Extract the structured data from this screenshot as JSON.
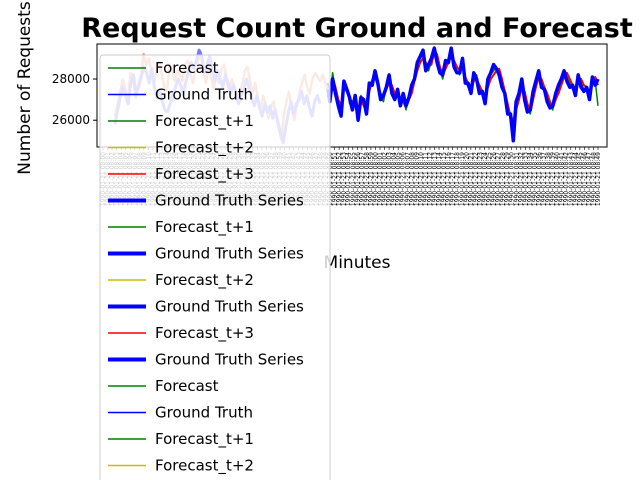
{
  "chart_data": {
    "type": "line",
    "title": "Request Count Ground and Forecast",
    "xlabel": "Minutes",
    "ylabel": "Number of Requests",
    "ylim": [
      24700,
      29700
    ],
    "yticks": [
      26000,
      28000
    ],
    "ytick_labels": [
      "26000",
      "28000"
    ],
    "x_tick_label_format": "1990-01-21 08:",
    "legend_location": "upper left",
    "grid": false,
    "legend": [
      {
        "name": "Forecast",
        "color": "#008000",
        "width": 1.5
      },
      {
        "name": "Ground Truth",
        "color": "#0000ff",
        "width": 1.5
      },
      {
        "name": "Forecast_t+1",
        "color": "#008000",
        "width": 1.5
      },
      {
        "name": "Forecast_t+2",
        "color": "#ccbb00",
        "width": 1.5
      },
      {
        "name": "Forecast_t+3",
        "color": "#ff0000",
        "width": 1.5
      },
      {
        "name": "Ground Truth Series",
        "color": "#0000ff",
        "width": 4
      },
      {
        "name": "Forecast_t+1",
        "color": "#008000",
        "width": 1.5
      },
      {
        "name": "Ground Truth Series",
        "color": "#0000ff",
        "width": 4
      },
      {
        "name": "Forecast_t+2",
        "color": "#ccbb00",
        "width": 1.5
      },
      {
        "name": "Ground Truth Series",
        "color": "#0000ff",
        "width": 4
      },
      {
        "name": "Forecast_t+3",
        "color": "#ff0000",
        "width": 1.5
      },
      {
        "name": "Ground Truth Series",
        "color": "#0000ff",
        "width": 4
      },
      {
        "name": "Forecast",
        "color": "#008000",
        "width": 1.5
      },
      {
        "name": "Ground Truth",
        "color": "#0000ff",
        "width": 1.5
      },
      {
        "name": "Forecast_t+1",
        "color": "#008000",
        "width": 1.5
      },
      {
        "name": "Forecast_t+2",
        "color": "#ccbb00",
        "width": 1.5
      }
    ],
    "series": [
      {
        "color": "#ff0000",
        "width": 2,
        "values": [
          27400,
          27200,
          28100,
          27600,
          27000,
          26700,
          27600,
          27400,
          27000,
          26900,
          26800,
          26300,
          27000,
          26700,
          26500,
          27400,
          27900,
          28100,
          27700,
          27300,
          27100,
          27500,
          27800,
          27700,
          27300,
          27200,
          27000,
          26900,
          26600,
          27000,
          27300,
          27900,
          28400,
          28800,
          29000,
          28800,
          28600,
          28700,
          29300,
          29200,
          28600,
          28200,
          28500,
          28800,
          29100,
          28900,
          28600,
          28400,
          28700,
          28100,
          27800,
          27600,
          27900,
          28000,
          27700,
          27400,
          27100,
          27600,
          28000,
          28200,
          28400,
          28500,
          28000,
          27400,
          26800,
          26200,
          26000,
          26500,
          27000,
          27600,
          27400,
          26800,
          26400,
          27000,
          27600,
          28100,
          28000,
          27600,
          27300,
          26900,
          26600,
          27000,
          27300,
          27700,
          28100,
          28300,
          28000,
          27700,
          27400,
          27800,
          28000,
          27700,
          27600,
          27300,
          27800,
          28100,
          27700
        ]
      },
      {
        "color": "#008000",
        "width": 1.5,
        "values": [
          27600,
          27000,
          28300,
          27500,
          26800,
          26500,
          27800,
          27600,
          26800,
          26700,
          27000,
          26100,
          27200,
          26900,
          26400,
          27600,
          28000,
          28300,
          27900,
          27100,
          26900,
          27700,
          28000,
          27500,
          27100,
          27400,
          26800,
          27100,
          26500,
          27200,
          27500,
          28100,
          28600,
          29000,
          29200,
          28600,
          28400,
          28900,
          29500,
          29000,
          28400,
          28000,
          28700,
          29000,
          29300,
          28700,
          28400,
          28200,
          28900,
          27900,
          27600,
          27500,
          28100,
          28200,
          27500,
          27200,
          26900,
          27800,
          28200,
          28400,
          28600,
          28300,
          27800,
          27200,
          26600,
          26000,
          25800,
          26700,
          27200,
          27800,
          27200,
          26600,
          26300,
          27200,
          27800,
          28300,
          27800,
          27400,
          27100,
          26700,
          26500,
          27200,
          27500,
          27900,
          28300,
          28100,
          27800,
          27500,
          27300,
          28000,
          27800,
          27500,
          27400,
          27200,
          28000,
          27900,
          26700
        ]
      },
      {
        "color": "#0000ff",
        "width": 3.5,
        "values": [
          27800,
          26900,
          28000,
          27300,
          26700,
          26200,
          27900,
          27500,
          27100,
          26500,
          27200,
          26000,
          27100,
          27000,
          26300,
          27800,
          27700,
          28400,
          27800,
          27000,
          27200,
          27600,
          28200,
          27300,
          27000,
          27500,
          26700,
          27300,
          26700,
          27100,
          27700,
          28000,
          28800,
          29100,
          29400,
          28400,
          28700,
          29000,
          29500,
          28800,
          28300,
          28200,
          28900,
          28800,
          29500,
          28600,
          28300,
          28300,
          29000,
          27800,
          27800,
          27300,
          28300,
          28000,
          27300,
          27400,
          26800,
          28000,
          28300,
          28700,
          28500,
          28200,
          27600,
          27300,
          26300,
          26300,
          25000,
          26900,
          27300,
          28000,
          27000,
          26400,
          26500,
          27400,
          27900,
          28400,
          27600,
          27500,
          26900,
          26600,
          26700,
          27300,
          27700,
          28000,
          28400,
          27900,
          27600,
          27700,
          27200,
          28200,
          27600,
          27400,
          27600,
          27000,
          28100,
          27700,
          28000
        ]
      },
      {
        "color": "#e9967a",
        "width": 2.5,
        "values": [
          26200,
          26800,
          27400,
          28000,
          27500,
          27100,
          28300,
          27900,
          27100,
          27800,
          28200,
          29200,
          28700,
          29000,
          28400,
          27800,
          28400,
          28800,
          28200,
          27600,
          27400,
          28700,
          28500,
          27900,
          28400,
          28200,
          27900,
          28700,
          28900,
          28300,
          27800,
          28400,
          28900,
          29300,
          28400,
          27800,
          28600,
          28100,
          27500,
          28200,
          27800,
          28500,
          28700,
          27900,
          27400,
          28000,
          27600,
          26900,
          27300,
          27800,
          28400,
          28600,
          27900,
          27300,
          27800,
          27100,
          26500,
          27200,
          26800,
          26100,
          26600,
          26900,
          26200,
          25600,
          25100,
          26200,
          26900,
          27400,
          26600,
          26000,
          26700,
          27300,
          27800,
          28200,
          27600,
          27300,
          28000,
          28300,
          28100,
          27900,
          28200,
          27800,
          27500
        ]
      },
      {
        "color": "#7b7bff",
        "width": 3,
        "values": [
          25800,
          26500,
          27100,
          27600,
          27200,
          26800,
          27800,
          28200,
          27300,
          27600,
          28100,
          28600,
          28300,
          27800,
          28500,
          27600,
          27100,
          27400,
          26900,
          26500,
          26400,
          26800,
          27200,
          27600,
          28000,
          27700,
          27300,
          27900,
          28400,
          28800,
          28500,
          28900,
          29400,
          29100,
          28300,
          28700,
          29100,
          28500,
          27900,
          28400,
          28000,
          27600,
          28200,
          27800,
          27300,
          27700,
          27400,
          26800,
          27200,
          27500,
          28000,
          27600,
          27100,
          26700,
          27200,
          26600,
          26200,
          26800,
          26400,
          26700,
          26100,
          26500,
          25900,
          25400,
          24900,
          25700,
          26400,
          26900,
          26300,
          26800,
          27000,
          27400,
          26800,
          27200,
          26600,
          26200,
          26900,
          27200,
          26800
        ]
      }
    ]
  }
}
